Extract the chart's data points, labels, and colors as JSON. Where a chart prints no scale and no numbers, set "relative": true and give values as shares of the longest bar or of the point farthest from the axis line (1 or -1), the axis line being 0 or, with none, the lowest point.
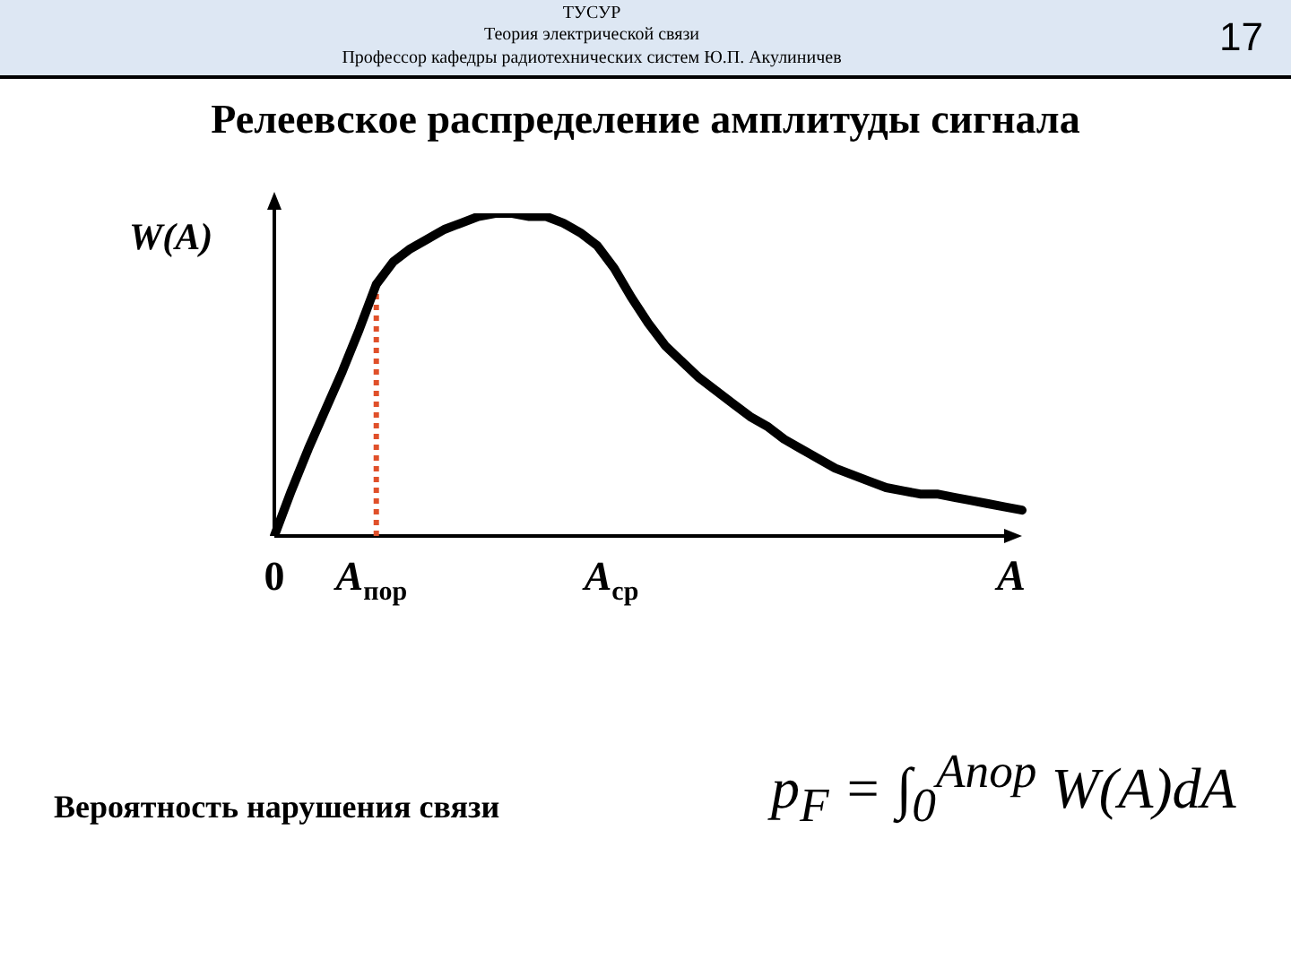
{
  "chart_data": {
    "type": "line",
    "relative": true,
    "title": "Релеевское распределение амплитуды сигнала",
    "xlabel": "A",
    "ylabel": "W(A)",
    "categories": [
      "0",
      null,
      null,
      null,
      null,
      null,
      "A$_{пор}$",
      null,
      null,
      null,
      null,
      null,
      null,
      null,
      null,
      null,
      null,
      null,
      null,
      null,
      "A$_{ср}$",
      null,
      null,
      null,
      null,
      null,
      null,
      null,
      null,
      null,
      null,
      null,
      null,
      null,
      null,
      null,
      null,
      null,
      null,
      null,
      null,
      null,
      null,
      null,
      null
    ],
    "series": [
      {
        "color": "#000000",
        "values": [
          0,
          0.14,
          0.27,
          0.39,
          0.51,
          0.64,
          0.78,
          0.85,
          0.89,
          0.92,
          0.95,
          0.97,
          0.99,
          1,
          1,
          0.99,
          0.99,
          0.97,
          0.94,
          0.9,
          0.83,
          0.74,
          0.66,
          0.59,
          0.54,
          0.49,
          0.45,
          0.41,
          0.37,
          0.34,
          0.3,
          0.27,
          0.24,
          0.21,
          0.19,
          0.17,
          0.15,
          0.14,
          0.13,
          0.13,
          0.12,
          0.11,
          0.1,
          0.09,
          0.08
        ]
      }
    ],
    "ref_lines": [
      {
        "axis": "x",
        "value": "A$_{пор}$",
        "color": "#e0502a",
        "line_style": "dotted"
      }
    ],
    "annotations": [
      "ТУСУР",
      "Теория электрической связи",
      "Профессор кафедры радиотехнических систем Ю.П. Акулиничев",
      "17",
      "Вероятность нарушения связи",
      "p$_{F}$ = ∫$_{0}$$^{Aпор}$ W(A)dA"
    ],
    "legend": false,
    "grid": false,
    "marker": "none",
    "line_style": "solid"
  }
}
